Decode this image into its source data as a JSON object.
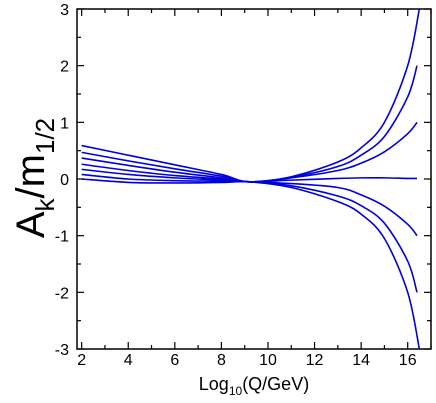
{
  "chart_data": {
    "type": "line",
    "xlabel": {
      "main": "Log",
      "sub": "10",
      "tail": "(Q/GeV)"
    },
    "ylabel": {
      "main": "A",
      "sub_k": "k",
      "mid": "/m",
      "sub_half": "1/2"
    },
    "xlim": [
      1.8,
      17.0
    ],
    "ylim": [
      -3,
      3
    ],
    "xticks": [
      2,
      4,
      6,
      8,
      10,
      12,
      14,
      16
    ],
    "yticks": [
      -3,
      -2,
      -1,
      0,
      1,
      2,
      3
    ],
    "grid": false,
    "colors": {
      "series": "#0000dd",
      "axes": "#000000",
      "background": "#ffffff"
    },
    "series": [
      {
        "x": [
          2,
          4,
          6,
          8,
          9.2,
          11,
          13,
          14,
          15,
          16,
          16.5
        ],
        "y": [
          0.59,
          0.42,
          0.25,
          0.08,
          -0.05,
          0.04,
          0.3,
          0.55,
          1.0,
          2.0,
          3.0
        ]
      },
      {
        "x": [
          2,
          4,
          6,
          8,
          9.2,
          11,
          13,
          14,
          15,
          16,
          16.4
        ],
        "y": [
          0.47,
          0.32,
          0.18,
          0.05,
          -0.05,
          0.03,
          0.22,
          0.42,
          0.75,
          1.45,
          2.0
        ]
      },
      {
        "x": [
          2,
          4,
          6,
          8,
          9.2,
          11,
          13,
          14,
          15,
          16,
          16.4
        ],
        "y": [
          0.37,
          0.24,
          0.12,
          0.02,
          -0.05,
          0.02,
          0.15,
          0.28,
          0.48,
          0.8,
          1.0
        ]
      },
      {
        "x": [
          2,
          4,
          6,
          8,
          9.2,
          11,
          13,
          14,
          15,
          16,
          16.4
        ],
        "y": [
          0.26,
          0.15,
          0.06,
          0.0,
          -0.05,
          -0.02,
          0.01,
          0.02,
          0.02,
          0.01,
          0.01
        ]
      },
      {
        "x": [
          2,
          4,
          6,
          8,
          9.2,
          11,
          13,
          14,
          15,
          16,
          16.4
        ],
        "y": [
          0.17,
          0.08,
          0.02,
          -0.02,
          -0.05,
          -0.08,
          -0.15,
          -0.28,
          -0.48,
          -0.8,
          -1.0
        ]
      },
      {
        "x": [
          2,
          4,
          6,
          8,
          9.2,
          11,
          13,
          14,
          15,
          16,
          16.4
        ],
        "y": [
          0.08,
          0.0,
          -0.03,
          -0.04,
          -0.05,
          -0.12,
          -0.3,
          -0.47,
          -0.78,
          -1.45,
          -2.0
        ]
      },
      {
        "x": [
          2,
          4,
          6,
          8,
          9.2,
          11,
          13,
          14,
          15,
          16,
          16.5
        ],
        "y": [
          0.0,
          -0.06,
          -0.07,
          -0.06,
          -0.05,
          -0.15,
          -0.4,
          -0.62,
          -1.05,
          -2.0,
          -3.0
        ]
      }
    ]
  }
}
